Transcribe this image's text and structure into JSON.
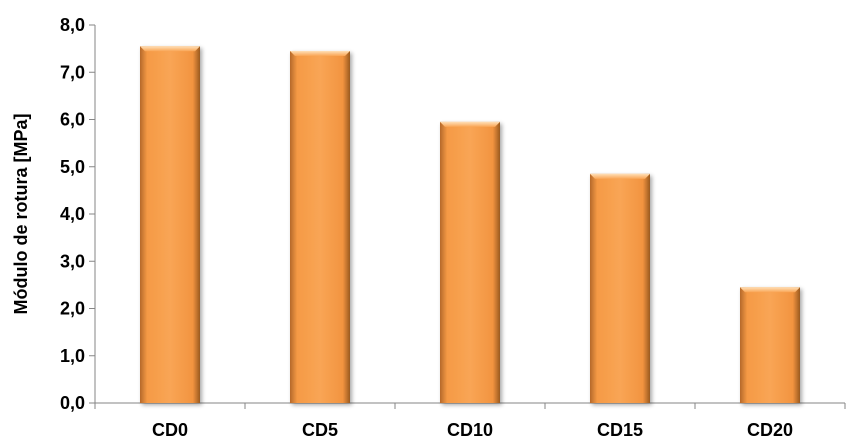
{
  "chart_data": {
    "type": "bar",
    "title": "",
    "xlabel": "",
    "ylabel": "Módulo de rotura [MPa]",
    "categories": [
      "CD0",
      "CD5",
      "CD10",
      "CD15",
      "CD20"
    ],
    "values": [
      7.55,
      7.45,
      5.95,
      4.85,
      2.45
    ],
    "ylim": [
      0,
      8
    ],
    "yticks": [
      "0,0",
      "1,0",
      "2,0",
      "3,0",
      "4,0",
      "5,0",
      "6,0",
      "7,0",
      "8,0"
    ],
    "grid": false,
    "legend": "none",
    "colors": {
      "bar_face": "#F9A34E",
      "bar_top": "#FCC48A",
      "bar_shadow": "#9A5A1F",
      "axis": "#868686"
    }
  }
}
